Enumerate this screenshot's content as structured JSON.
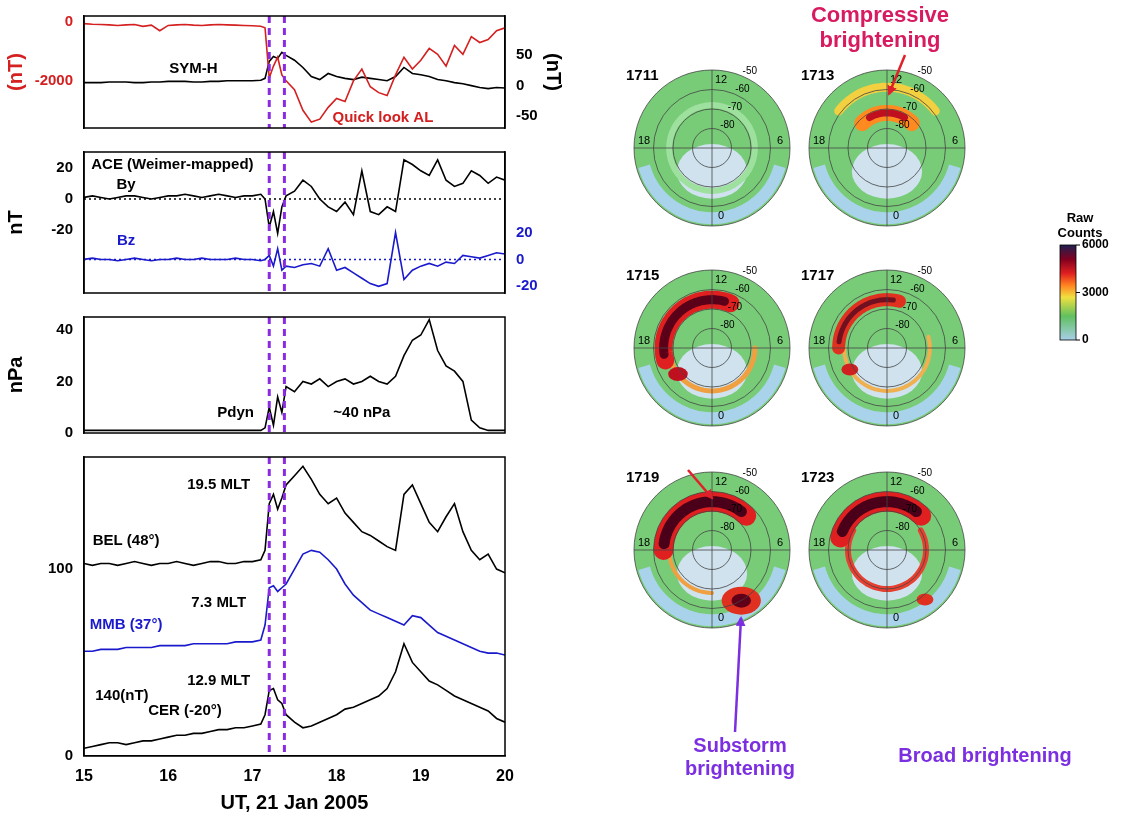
{
  "chart_data": [
    {
      "type": "line",
      "x": [
        15,
        15.1,
        15.2,
        15.3,
        15.4,
        15.5,
        15.6,
        15.7,
        15.8,
        15.9,
        16,
        16.1,
        16.2,
        16.3,
        16.4,
        16.5,
        16.6,
        16.7,
        16.8,
        16.9,
        17,
        17.1,
        17.15,
        17.2,
        17.25,
        17.3,
        17.35,
        17.4,
        17.5,
        17.6,
        17.7,
        17.8,
        17.9,
        18,
        18.1,
        18.2,
        18.3,
        18.4,
        18.5,
        18.6,
        18.7,
        18.8,
        18.9,
        19,
        19.1,
        19.2,
        19.3,
        19.4,
        19.5,
        19.6,
        19.7,
        19.8,
        19.9,
        20
      ],
      "xlim": [
        15,
        20
      ],
      "xticks": [
        15,
        16,
        17,
        18,
        19,
        20
      ],
      "ylim": [
        -3600,
        200
      ],
      "yticks": [
        -2000,
        0
      ],
      "y_label": "(nT)",
      "y2lim": [
        -70,
        115
      ],
      "y2ticks": [
        -50,
        0,
        50
      ],
      "y2_label": "(nT)",
      "grid": false,
      "tick_labels": "y",
      "vertical_lines": [
        17.2,
        17.38
      ],
      "series": [
        {
          "name": "Quick look AL",
          "color": "#d42020",
          "label_at": [
            18.55,
            -3250
          ],
          "values": [
            -60,
            -80,
            -90,
            -100,
            -120,
            -100,
            -90,
            -150,
            -110,
            -300,
            -120,
            -100,
            -90,
            -110,
            -120,
            -100,
            -90,
            -100,
            -110,
            -120,
            -130,
            -150,
            -200,
            -1900,
            -1500,
            -1200,
            -1800,
            -2000,
            -2300,
            -3000,
            -3400,
            -3300,
            -2900,
            -2600,
            -2700,
            -2000,
            -1600,
            -2200,
            -2400,
            -2500,
            -1800,
            -1200,
            -1600,
            -1300,
            -900,
            -1100,
            -1500,
            -800,
            -1100,
            -500,
            -700,
            -600,
            -300,
            -200
          ]
        },
        {
          "name": "SYM-H",
          "color": "#000000",
          "axis": "y2",
          "label_at": [
            16.3,
            28
          ],
          "values": [
            5,
            5,
            5,
            6,
            6,
            6,
            5,
            5,
            6,
            6,
            7,
            7,
            7,
            6,
            6,
            7,
            7,
            8,
            8,
            8,
            8,
            9,
            12,
            40,
            48,
            45,
            55,
            50,
            42,
            30,
            15,
            10,
            20,
            15,
            12,
            10,
            14,
            12,
            10,
            8,
            15,
            30,
            20,
            18,
            15,
            10,
            8,
            5,
            3,
            0,
            -3,
            -5,
            -3,
            -4
          ]
        }
      ]
    },
    {
      "type": "line",
      "x": [
        15,
        15.1,
        15.2,
        15.3,
        15.4,
        15.5,
        15.6,
        15.7,
        15.8,
        15.9,
        16,
        16.1,
        16.2,
        16.3,
        16.4,
        16.5,
        16.6,
        16.7,
        16.8,
        16.9,
        17,
        17.1,
        17.15,
        17.2,
        17.25,
        17.3,
        17.35,
        17.4,
        17.5,
        17.6,
        17.7,
        17.8,
        17.9,
        18,
        18.1,
        18.2,
        18.3,
        18.4,
        18.5,
        18.6,
        18.7,
        18.8,
        18.9,
        19,
        19.1,
        19.2,
        19.3,
        19.4,
        19.5,
        19.6,
        19.7,
        19.8,
        19.9,
        20
      ],
      "xlim": [
        15,
        20
      ],
      "xticks": [
        15,
        16,
        17,
        18,
        19,
        20
      ],
      "ylim": [
        -60,
        30
      ],
      "yticks": [
        -20,
        0,
        20
      ],
      "y_label": "nT",
      "y2lim": [
        -25,
        80
      ],
      "y2ticks": [
        -20,
        0,
        20
      ],
      "grid": false,
      "tick_labels": "y",
      "vertical_lines": [
        17.2,
        17.38
      ],
      "reference_lines": [
        {
          "axis": "y",
          "value": 0,
          "color": "#000000"
        },
        {
          "axis": "y2",
          "value": 0,
          "color": "#1a1acc"
        }
      ],
      "annotations": [
        {
          "text": "ACE (Weimer-mapped)",
          "x": 16.05,
          "y": 22
        }
      ],
      "series": [
        {
          "name": "By",
          "color": "#000000",
          "label_at": [
            15.5,
            9
          ],
          "values": [
            1,
            2,
            1,
            0,
            1,
            2,
            2,
            1,
            0,
            1,
            2,
            2,
            3,
            2,
            1,
            2,
            3,
            2,
            1,
            2,
            2,
            3,
            0,
            -18,
            -8,
            -22,
            -5,
            2,
            5,
            12,
            8,
            0,
            -5,
            -8,
            -2,
            -10,
            18,
            -8,
            -10,
            -5,
            -8,
            25,
            22,
            18,
            15,
            25,
            12,
            8,
            10,
            18,
            15,
            10,
            14,
            12
          ]
        },
        {
          "name": "Bz",
          "color": "#1a1acc",
          "axis": "y2",
          "label_at": [
            15.5,
            14
          ],
          "values": [
            0,
            1,
            0,
            0,
            -1,
            0,
            1,
            0,
            -1,
            0,
            0,
            1,
            0,
            0,
            1,
            0,
            0,
            0,
            1,
            0,
            0,
            -1,
            0,
            3,
            -5,
            8,
            -8,
            -5,
            -6,
            -4,
            -3,
            -5,
            8,
            -8,
            -6,
            -10,
            -14,
            -18,
            -20,
            -18,
            20,
            -15,
            -8,
            -5,
            -3,
            -5,
            -2,
            -3,
            3,
            2,
            1,
            3,
            5,
            4
          ]
        }
      ]
    },
    {
      "type": "line",
      "x": [
        15,
        15.1,
        15.2,
        15.3,
        15.4,
        15.5,
        15.6,
        15.7,
        15.8,
        15.9,
        16,
        16.1,
        16.2,
        16.3,
        16.4,
        16.5,
        16.6,
        16.7,
        16.8,
        16.9,
        17,
        17.1,
        17.15,
        17.2,
        17.25,
        17.3,
        17.35,
        17.4,
        17.5,
        17.6,
        17.7,
        17.8,
        17.9,
        18,
        18.1,
        18.2,
        18.3,
        18.4,
        18.5,
        18.6,
        18.7,
        18.8,
        18.9,
        19,
        19.1,
        19.2,
        19.3,
        19.4,
        19.5,
        19.6,
        19.7,
        19.8,
        19.9,
        20
      ],
      "xlim": [
        15,
        20
      ],
      "xticks": [
        15,
        16,
        17,
        18,
        19,
        20
      ],
      "ylim": [
        0,
        45
      ],
      "yticks": [
        0,
        20,
        40
      ],
      "y_label": "nPa",
      "grid": false,
      "tick_labels": "y",
      "vertical_lines": [
        17.2,
        17.38
      ],
      "annotations": [
        {
          "text": "~40 nPa",
          "x": 18.3,
          "y": 8
        }
      ],
      "series": [
        {
          "name": "Pdyn",
          "color": "#000000",
          "label_at": [
            16.8,
            8
          ],
          "values": [
            1,
            1,
            1,
            1,
            1,
            1,
            1,
            1,
            1,
            1,
            1,
            1,
            1,
            1,
            1,
            1,
            1,
            1,
            1,
            1,
            1,
            1,
            2,
            10,
            3,
            14,
            8,
            18,
            16,
            20,
            19,
            21,
            18,
            20,
            21,
            19,
            20,
            22,
            20,
            19,
            22,
            30,
            36,
            38,
            44,
            32,
            26,
            24,
            20,
            5,
            2,
            1,
            1,
            1
          ]
        }
      ]
    },
    {
      "type": "line",
      "x": [
        15,
        15.1,
        15.2,
        15.3,
        15.4,
        15.5,
        15.6,
        15.7,
        15.8,
        15.9,
        16,
        16.1,
        16.2,
        16.3,
        16.4,
        16.5,
        16.6,
        16.7,
        16.8,
        16.9,
        17,
        17.1,
        17.15,
        17.2,
        17.25,
        17.3,
        17.35,
        17.4,
        17.5,
        17.6,
        17.7,
        17.8,
        17.9,
        18,
        18.1,
        18.2,
        18.3,
        18.4,
        18.5,
        18.6,
        18.7,
        18.8,
        18.9,
        19,
        19.1,
        19.2,
        19.3,
        19.4,
        19.5,
        19.6,
        19.7,
        19.8,
        19.9,
        20
      ],
      "xlim": [
        15,
        20
      ],
      "xticks": [
        15,
        16,
        17,
        18,
        19,
        20
      ],
      "x_label": "UT, 21 Jan 2005",
      "ylim": [
        0,
        160
      ],
      "yticks": [
        0,
        100
      ],
      "grid": false,
      "vertical_lines": [
        17.2,
        17.38
      ],
      "annotations": [
        {
          "text": "19.5 MLT",
          "x": 16.6,
          "y": 145
        },
        {
          "text": "7.3 MLT",
          "x": 16.6,
          "y": 82
        },
        {
          "text": "12.9 MLT",
          "x": 16.6,
          "y": 40
        },
        {
          "text": "140(nT)",
          "x": 15.45,
          "y": 32
        }
      ],
      "series": [
        {
          "name": "BEL (48°)",
          "color": "#000000",
          "label_at": [
            15.5,
            115
          ],
          "values": [
            103,
            102,
            103,
            103,
            102,
            103,
            104,
            103,
            102,
            103,
            103,
            104,
            103,
            102,
            103,
            104,
            104,
            103,
            103,
            104,
            104,
            105,
            110,
            135,
            140,
            132,
            138,
            145,
            150,
            155,
            148,
            140,
            135,
            138,
            130,
            125,
            120,
            118,
            115,
            112,
            110,
            140,
            145,
            135,
            125,
            120,
            128,
            135,
            120,
            110,
            105,
            108,
            100,
            98
          ]
        },
        {
          "name": "MMB (37°)",
          "color": "#1a1acc",
          "label_at": [
            15.5,
            70
          ],
          "values": [
            56,
            56,
            57,
            57,
            57,
            58,
            58,
            58,
            58,
            59,
            59,
            59,
            59,
            60,
            60,
            60,
            60,
            60,
            61,
            61,
            61,
            62,
            70,
            90,
            91,
            88,
            90,
            92,
            100,
            108,
            110,
            109,
            105,
            100,
            92,
            86,
            82,
            78,
            76,
            74,
            72,
            70,
            75,
            74,
            70,
            66,
            64,
            62,
            60,
            58,
            56,
            55,
            55,
            54
          ]
        },
        {
          "name": "CER (-20°)",
          "color": "#000000",
          "label_at": [
            16.2,
            24
          ],
          "values": [
            4,
            5,
            6,
            7,
            7,
            6,
            7,
            8,
            8,
            9,
            10,
            11,
            11,
            12,
            12,
            13,
            14,
            14,
            15,
            15,
            16,
            17,
            22,
            35,
            36,
            30,
            28,
            22,
            18,
            15,
            16,
            18,
            20,
            22,
            25,
            26,
            28,
            30,
            32,
            36,
            45,
            60,
            50,
            45,
            40,
            38,
            35,
            32,
            30,
            28,
            26,
            24,
            20,
            18
          ]
        }
      ]
    }
  ],
  "auroral_images": {
    "panels": [
      "1711",
      "1713",
      "1715",
      "1717",
      "1719",
      "1723"
    ],
    "mlt_labels": [
      12,
      18,
      6,
      0
    ],
    "latitude_labels": [
      -50,
      -60,
      -70,
      -80
    ],
    "colorbar": {
      "title": "Raw Counts",
      "range": [
        0,
        6000
      ],
      "ticks": [
        0,
        3000,
        6000
      ]
    },
    "annotations": [
      "Compressive brightening",
      "Substorm brightening",
      "Broad brightening"
    ]
  }
}
